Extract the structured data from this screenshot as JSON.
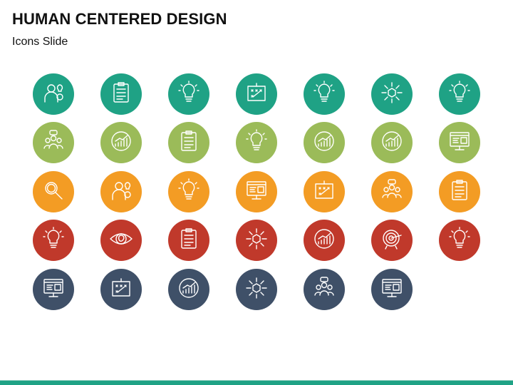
{
  "slide": {
    "title": "HUMAN CENTERED DESIGN",
    "subtitle": "Icons Slide"
  },
  "colors": {
    "teal": "#1fa285",
    "green": "#9bbb59",
    "orange": "#f39c24",
    "red": "#c0392b",
    "slate": "#3f5068",
    "bottom_bar": "#1fa285"
  },
  "icon_rows": [
    {
      "color": "#1fa285",
      "icons": [
        "two-heads-exchange-icon",
        "checklist-clipboard-pencil-icon",
        "idea-box-icon",
        "blueprint-design-icon",
        "engineer-idea-gear-icon",
        "process-cycle-icon",
        "brain-bulb-icon"
      ]
    },
    {
      "color": "#9bbb59",
      "icons": [
        "team-presentation-icon",
        "candlestick-hand-icon",
        "clipboard-document-icon",
        "idea-browser-icon",
        "investment-growth-icon",
        "growth-chart-circle-icon",
        "monitor-checklist-icon"
      ]
    },
    {
      "color": "#f39c24",
      "icons": [
        "magnifier-icon",
        "businessman-icon",
        "engineer-idea-gear-icon",
        "code-monitor-icon",
        "design-tools-gear-icon",
        "team-meeting-icon",
        "checklist-hand-icon"
      ]
    },
    {
      "color": "#c0392b",
      "icons": [
        "meditation-idea-icon",
        "eye-apple-icon",
        "survey-megaphone-icon",
        "puzzle-process-icon",
        "analytics-search-icon",
        "target-arrow-icon",
        "bulb-gears-icon"
      ]
    },
    {
      "color": "#3f5068",
      "icons": [
        "responsive-design-icon",
        "strategy-board-icon",
        "data-analysis-icon",
        "product-distribution-icon",
        "user-group-chat-icon",
        "web-dashboard-icon"
      ]
    }
  ]
}
